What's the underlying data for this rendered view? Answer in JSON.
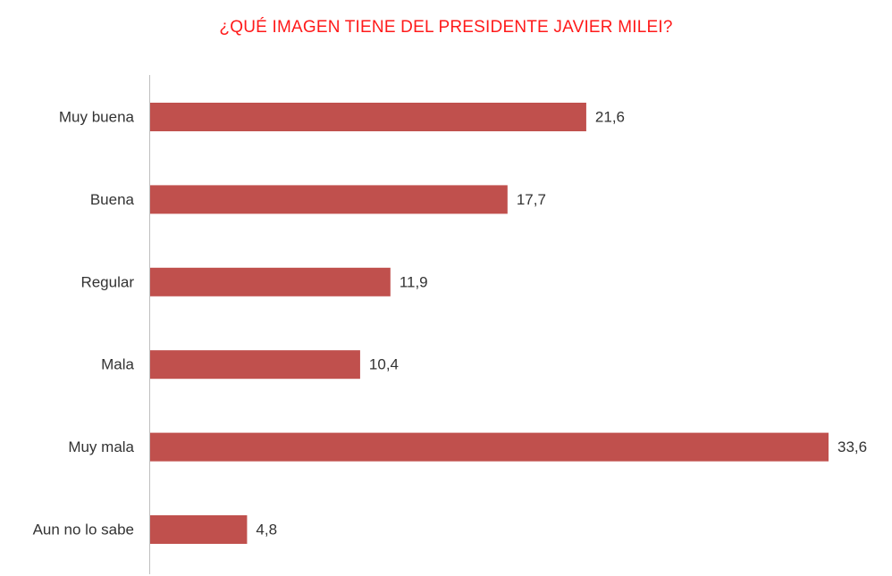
{
  "colors": {
    "title": "#ff1a1a",
    "bar": "#c0504d",
    "axis": "#bfbfbf",
    "label": "#333333"
  },
  "chart_data": {
    "type": "bar",
    "orientation": "horizontal",
    "title": "¿QUÉ IMAGEN TIENE DEL PRESIDENTE JAVIER MILEI?",
    "categories": [
      "Muy buena",
      "Buena",
      "Regular",
      "Mala",
      "Muy mala",
      "Aun no lo sabe"
    ],
    "values": [
      21.6,
      17.7,
      11.9,
      10.4,
      33.6,
      4.8
    ],
    "value_labels": [
      "21,6",
      "17,7",
      "11,9",
      "10,4",
      "33,6",
      "4,8"
    ],
    "xlim": [
      0,
      33.6
    ],
    "grid": false,
    "legend": "none"
  }
}
